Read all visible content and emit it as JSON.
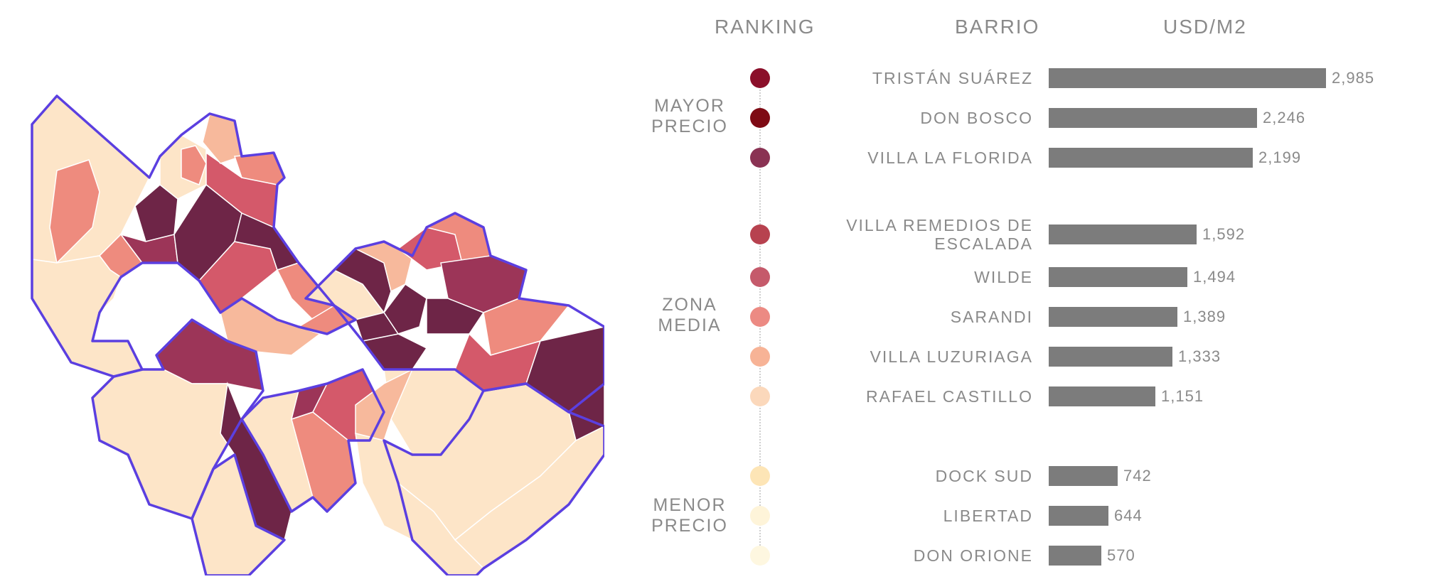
{
  "headers": {
    "ranking": "RANKING",
    "barrio": "BARRIO",
    "value": "USD/M2"
  },
  "zones": {
    "top": [
      "MAYOR",
      "PRECIO"
    ],
    "mid": [
      "ZONA",
      "MEDIA"
    ],
    "low": [
      "MENOR",
      "PRECIO"
    ]
  },
  "colors": {
    "map_border": "#5b3fe0",
    "bar": "#7c7c7c",
    "map_fill_scale": [
      "#fde5c8",
      "#f7b99c",
      "#ee8b7e",
      "#d4596a",
      "#9c3558",
      "#6e2547"
    ]
  },
  "chart_data": {
    "type": "bar",
    "orientation": "horizontal",
    "xlabel": "USD/M2",
    "xlim": [
      0,
      3000
    ],
    "categories": [
      "TRISTÁN SUÁREZ",
      "DON BOSCO",
      "VILLA LA FLORIDA",
      "VILLA REMEDIOS DE ESCALADA",
      "WILDE",
      "SARANDI",
      "VILLA LUZURIAGA",
      "RAFAEL CASTILLO",
      "DOCK SUD",
      "LIBERTAD",
      "DON ORIONE"
    ],
    "values": [
      2985,
      2246,
      2199,
      1592,
      1494,
      1389,
      1333,
      1151,
      742,
      644,
      570
    ],
    "value_labels": [
      "2,985",
      "2,246",
      "2,199",
      "1,592",
      "1,494",
      "1,389",
      "1,333",
      "1,151",
      "742",
      "644",
      "570"
    ],
    "rank_colors": [
      "#8b0f2a",
      "#7e0a14",
      "#8a3253",
      "#b7424f",
      "#c55a6b",
      "#ec8a83",
      "#f7b396",
      "#fbd8bb",
      "#fde5b6",
      "#fef4d9",
      "#fef7e0"
    ]
  }
}
